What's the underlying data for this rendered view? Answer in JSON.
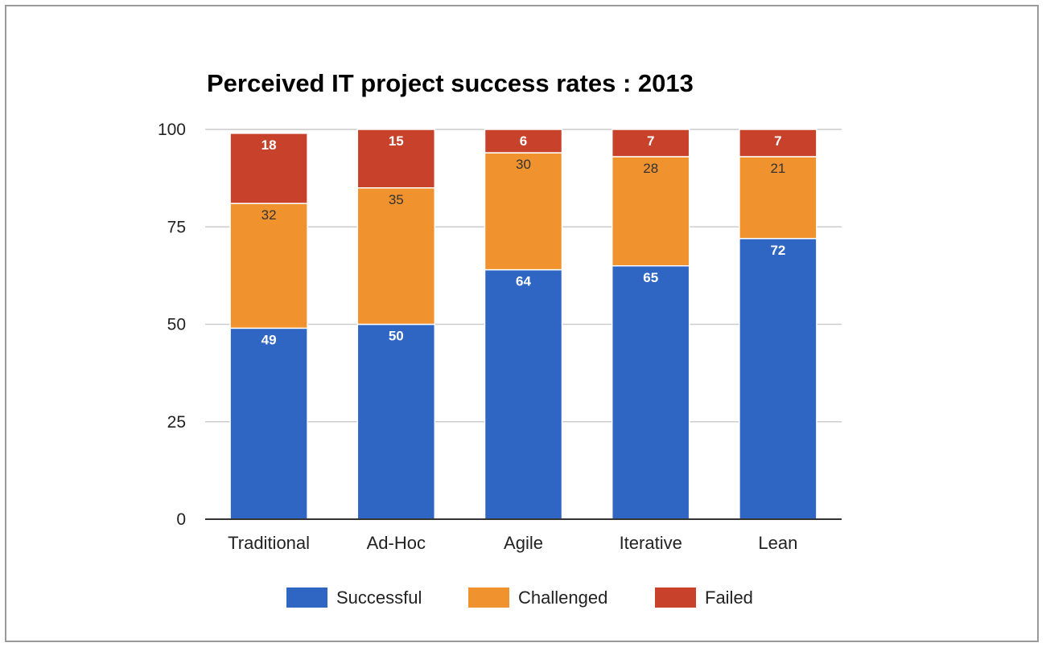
{
  "chart_data": {
    "type": "bar",
    "stacked": true,
    "title": "Perceived IT project success rates : 2013",
    "xlabel": "",
    "ylabel": "",
    "ylim": [
      0,
      100
    ],
    "yticks": [
      0,
      25,
      50,
      75,
      100
    ],
    "grid": true,
    "legend": "bottom",
    "categories": [
      "Traditional",
      "Ad-Hoc",
      "Agile",
      "Iterative",
      "Lean"
    ],
    "series": [
      {
        "name": "Successful",
        "color": "#2f66c3",
        "values": [
          49,
          50,
          64,
          65,
          72
        ]
      },
      {
        "name": "Challenged",
        "color": "#f0922e",
        "values": [
          32,
          35,
          30,
          28,
          21
        ]
      },
      {
        "name": "Failed",
        "color": "#c7412b",
        "values": [
          18,
          15,
          6,
          7,
          7
        ]
      }
    ]
  }
}
